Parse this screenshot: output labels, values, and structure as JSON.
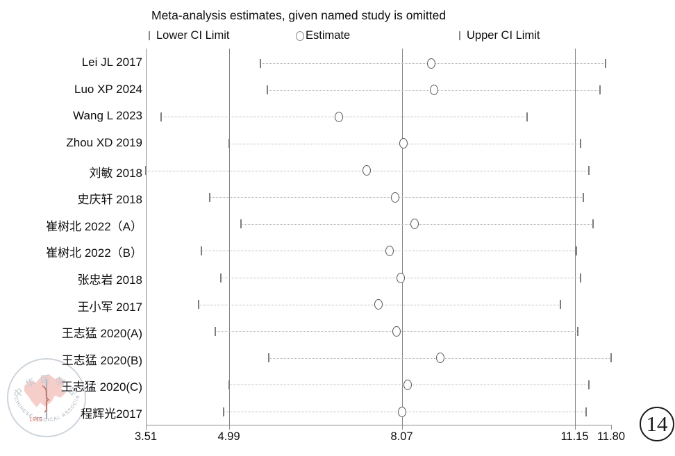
{
  "header": {
    "title": "Meta-analysis estimates, given named study is omitted"
  },
  "legend": {
    "lower_label": "Lower CI Limit",
    "estimate_label": "Estimate",
    "upper_label": "Upper CI Limit"
  },
  "badge": {
    "number": "14"
  },
  "watermark": {
    "cn_text": "中华医学会",
    "en_text": "CHINESE MEDICAL ASSOCIATION",
    "year": "1915"
  },
  "colors": {
    "grid": "#848484",
    "axis": "#8b8b8b",
    "ci_dots": "#b4b4b4",
    "marker_stroke": "#5a5a5a",
    "text": "#0d0d0d",
    "watermark_ring": "#c6cdd6",
    "watermark_map": "#f0b3ab",
    "watermark_red": "#c4524a"
  },
  "chart_data": {
    "type": "scatter",
    "subtype": "leave-one-out-sensitivity-forest",
    "title": "Meta-analysis estimates, given named study is omitted",
    "orientation": "horizontal-rows",
    "categories": [
      "Lei JL 2017",
      "Luo XP 2024",
      "Wang L 2023",
      "Zhou XD 2019",
      "刘敏 2018",
      "史庆轩 2018",
      "崔树北 2022（A）",
      "崔树北 2022（B）",
      "张忠岩 2018",
      "王小军 2017",
      "王志猛 2020(A)",
      "王志猛 2020(B)",
      "王志猛 2020(C)",
      "程辉光2017"
    ],
    "series": [
      {
        "name": "Lower CI Limit",
        "values": [
          5.55,
          5.68,
          3.78,
          4.99,
          3.51,
          4.65,
          5.2,
          4.5,
          4.85,
          4.45,
          4.75,
          5.7,
          5.0,
          4.9
        ]
      },
      {
        "name": "Estimate",
        "values": [
          8.6,
          8.65,
          6.95,
          8.1,
          7.45,
          7.95,
          8.3,
          7.85,
          8.05,
          7.65,
          7.97,
          8.75,
          8.18,
          8.08
        ]
      },
      {
        "name": "Upper CI Limit",
        "values": [
          11.7,
          11.6,
          10.3,
          11.25,
          11.4,
          11.3,
          11.48,
          11.18,
          11.25,
          10.9,
          11.2,
          11.8,
          11.4,
          11.35
        ]
      }
    ],
    "xlim": [
      3.51,
      11.8
    ],
    "x_ticks": [
      3.51,
      4.99,
      8.07,
      11.15,
      11.8
    ],
    "x_tick_labels": [
      "3.51",
      "4.99",
      "8.07",
      "11.15",
      "11.80"
    ],
    "reference_lines": [
      4.99,
      8.07,
      11.15
    ],
    "overall": {
      "estimate": 8.07,
      "ci_lower": 4.99,
      "ci_upper": 11.15
    },
    "grid": "vertical-reference-lines-only",
    "legend_position": "top"
  }
}
